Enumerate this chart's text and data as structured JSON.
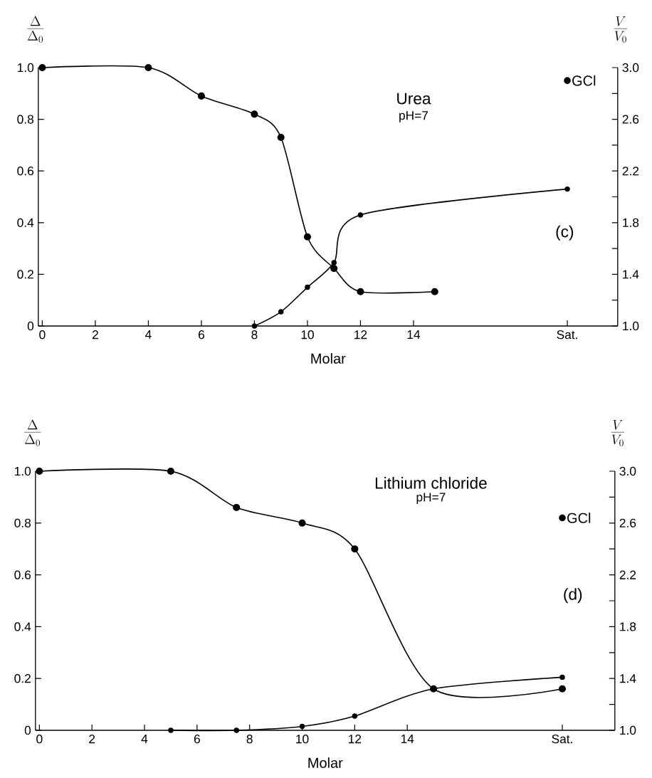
{
  "chart_data": [
    {
      "type": "line",
      "marker": "circle",
      "line_style": "solid",
      "xlabel": "Molar",
      "ylabel": "\\frac{\\Delta}{\\Delta_0}",
      "y2label": "\\frac{V}{V_0}",
      "xlim": [
        -0.15,
        21.7
      ],
      "xticks": [
        0,
        2,
        4,
        6,
        8,
        10,
        12,
        14,
        {
          "value": 19.8,
          "label": "Sat."
        }
      ],
      "ylim": [
        0,
        1
      ],
      "yticks": [
        0,
        0.2,
        0.4,
        0.6,
        0.8,
        {
          "value": 1,
          "label": "1.0"
        }
      ],
      "y2lim": [
        1,
        3
      ],
      "y2ticks": [
        {
          "value": 1,
          "label": "1.0"
        },
        {
          "value": 1.2,
          "label": null
        },
        1.4,
        {
          "value": 1.6,
          "label": null
        },
        1.8,
        {
          "value": 2.0,
          "label": null
        },
        2.2,
        {
          "value": 2.4,
          "label": null
        },
        2.6,
        {
          "value": 2.8,
          "label": null
        },
        {
          "value": 3,
          "label": "3.0"
        }
      ],
      "series": [
        {
          "color": "#000000",
          "x": [
            0,
            4,
            6,
            8,
            9,
            10,
            11,
            12,
            14.8
          ],
          "values": [
            1.0,
            1.0,
            0.89,
            0.82,
            0.73,
            0.345,
            0.223,
            0.133,
            0.133
          ]
        },
        {
          "color": "#000000",
          "axis": "y2",
          "x": [
            8,
            9,
            10,
            11,
            12,
            19.8
          ],
          "values": [
            1.0,
            1.11,
            1.3,
            1.49,
            1.86,
            2.06
          ]
        },
        {
          "name": "GCl",
          "type": "scatter",
          "color": "#000000",
          "x": [
            19.8
          ],
          "values": [
            0.95
          ]
        }
      ],
      "annotations": [
        "Urea",
        "pH=7",
        "(c)"
      ]
    },
    {
      "type": "line",
      "marker": "circle",
      "line_style": "solid",
      "xlabel": "Molar",
      "ylabel": "\\frac{\\Delta}{\\Delta_0}",
      "y2label": "\\frac{V}{V_0}",
      "xlim": [
        -0.15,
        21.9
      ],
      "xticks": [
        0,
        2,
        4,
        6,
        8,
        10,
        12,
        14,
        {
          "value": 19.9,
          "label": "Sat."
        }
      ],
      "ylim": [
        0,
        1
      ],
      "yticks": [
        0,
        0.2,
        0.4,
        0.6,
        0.8,
        {
          "value": 1,
          "label": "1.0"
        }
      ],
      "y2lim": [
        1,
        3
      ],
      "y2ticks": [
        {
          "value": 1,
          "label": "1.0"
        },
        {
          "value": 1.2,
          "label": null
        },
        1.4,
        {
          "value": 1.6,
          "label": null
        },
        1.8,
        {
          "value": 2.0,
          "label": null
        },
        2.2,
        {
          "value": 2.4,
          "label": null
        },
        2.6,
        {
          "value": 2.8,
          "label": null
        },
        {
          "value": 3,
          "label": "3.0"
        }
      ],
      "series": [
        {
          "color": "#000000",
          "x": [
            0,
            5,
            7.5,
            10,
            12,
            15,
            19.9
          ],
          "values": [
            1.0,
            1.0,
            0.86,
            0.8,
            0.7,
            0.16,
            0.16
          ]
        },
        {
          "color": "#000000",
          "axis": "y2",
          "x": [
            5,
            7.5,
            10,
            12,
            15,
            19.9
          ],
          "values": [
            1.0,
            1.0,
            1.03,
            1.11,
            1.32,
            1.41
          ]
        },
        {
          "name": "GCl",
          "type": "scatter",
          "color": "#000000",
          "x": [
            19.9
          ],
          "values": [
            0.82
          ]
        }
      ],
      "annotations": [
        "Lithium chloride",
        "pH=7",
        "(d)"
      ]
    }
  ]
}
